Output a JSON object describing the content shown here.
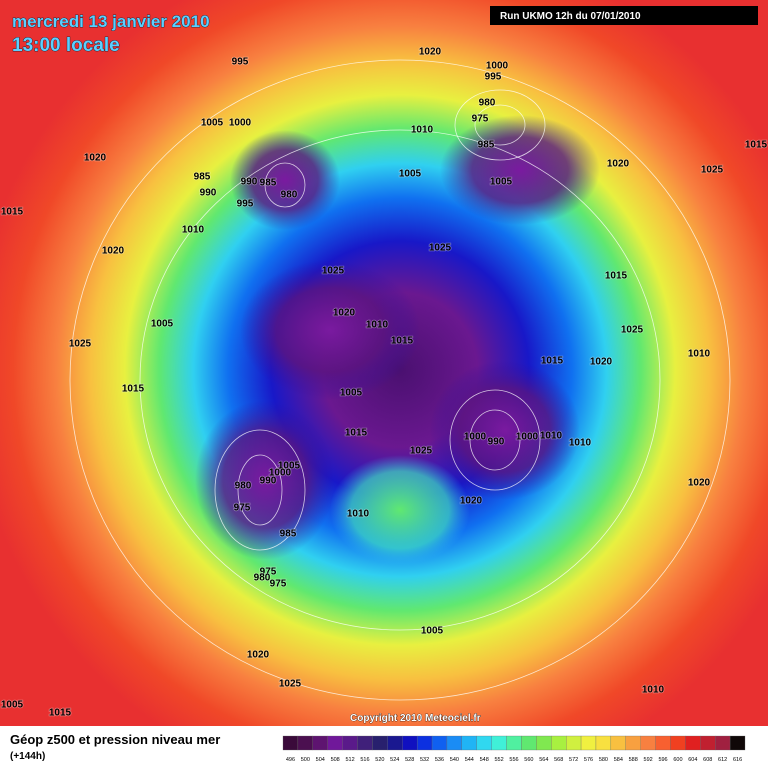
{
  "header": {
    "date": "mercredi 13 janvier 2010",
    "time": "13:00 locale",
    "run": "Run UKMO 12h du 07/01/2010"
  },
  "copyright": "Copyright 2010 Meteociel.fr",
  "footer": {
    "legend_title": "Géop z500 et pression niveau mer",
    "legend_subtitle": "(+144h)",
    "scale": [
      496,
      500,
      504,
      508,
      512,
      516,
      520,
      524,
      528,
      532,
      536,
      540,
      544,
      548,
      552,
      556,
      560,
      564,
      568,
      572,
      576,
      580,
      584,
      588,
      592,
      596,
      600,
      604,
      608,
      612,
      616
    ]
  },
  "pressure_labels": [
    "1020",
    "1000",
    "995",
    "995",
    "980",
    "975",
    "1010",
    "985",
    "1005",
    "1000",
    "1020",
    "985",
    "990",
    "985",
    "980",
    "990",
    "995",
    "1010",
    "1005",
    "1005",
    "1020",
    "1025",
    "1015",
    "1015",
    "1020",
    "1025",
    "1025",
    "1015",
    "1025",
    "1010",
    "1020",
    "1010",
    "1015",
    "1005",
    "1025",
    "1015",
    "1005",
    "1015",
    "1020",
    "1015",
    "1000",
    "990",
    "1000",
    "1010",
    "1010",
    "1025",
    "1005",
    "1000",
    "990",
    "980",
    "975",
    "1010",
    "1020",
    "985",
    "1020",
    "975",
    "980",
    "975",
    "1005",
    "1020",
    "1025",
    "1010",
    "1005",
    "1015"
  ]
}
